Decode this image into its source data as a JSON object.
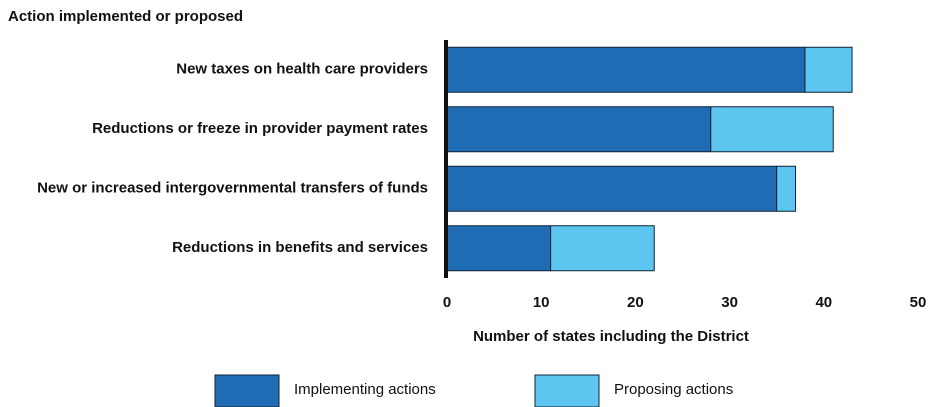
{
  "chart_data": {
    "type": "stacked_barh",
    "y_axis_title": "Action implemented or proposed",
    "x_axis_title": "Number of states including the District",
    "categories": [
      "New taxes on health care providers",
      "Reductions or freeze in provider payment rates",
      "New or increased intergovernmental transfers of funds",
      "Reductions in benefits and services"
    ],
    "series": [
      {
        "name": "Implementing actions",
        "color": "#1f6cb4",
        "values": [
          38,
          28,
          35,
          11
        ]
      },
      {
        "name": "Proposing actions",
        "color": "#5cc5f0",
        "values": [
          5,
          13,
          2,
          11
        ]
      }
    ],
    "xlim": [
      0,
      50
    ],
    "xticks": [
      0,
      10,
      20,
      30,
      40,
      50
    ],
    "grid": false,
    "legend": "bottom"
  }
}
